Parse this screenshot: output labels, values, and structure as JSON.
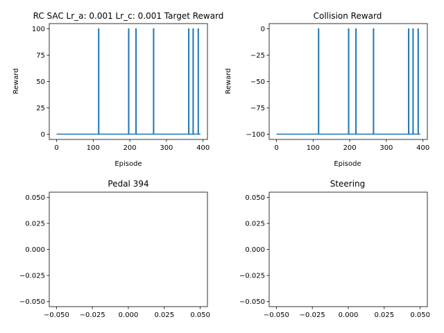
{
  "figure": {
    "background": "#ffffff",
    "line_color": "#1f77b4"
  },
  "chart_data": [
    {
      "type": "line",
      "title": "RC SAC Lr_a: 0.001 Lr_c: 0.001 Target Reward",
      "xlabel": "Episode",
      "ylabel": "Reward",
      "xlim": [
        -20,
        412
      ],
      "ylim": [
        -5,
        105
      ],
      "xticks": [
        0,
        100,
        200,
        300,
        400
      ],
      "yticks": [
        0,
        25,
        50,
        75,
        100
      ],
      "xtick_labels": [
        "0",
        "100",
        "200",
        "300",
        "400"
      ],
      "ytick_labels": [
        "0",
        "25",
        "50",
        "75",
        "100"
      ],
      "series": [
        {
          "color": "#1f77b4",
          "baseline": 0,
          "x_range": [
            0,
            393
          ],
          "spikes": [
            {
              "x": 115,
              "y": 100
            },
            {
              "x": 197,
              "y": 100
            },
            {
              "x": 217,
              "y": 100
            },
            {
              "x": 265,
              "y": 100
            },
            {
              "x": 361,
              "y": 100
            },
            {
              "x": 373,
              "y": 100
            },
            {
              "x": 387,
              "y": 100
            }
          ]
        }
      ]
    },
    {
      "type": "line",
      "title": "Collision Reward",
      "xlabel": "Episode",
      "ylabel": "Reward",
      "xlim": [
        -20,
        412
      ],
      "ylim": [
        -105,
        5
      ],
      "xticks": [
        0,
        100,
        200,
        300,
        400
      ],
      "yticks": [
        -100,
        -75,
        -50,
        -25,
        0
      ],
      "xtick_labels": [
        "0",
        "100",
        "200",
        "300",
        "400"
      ],
      "ytick_labels": [
        "−100",
        "−75",
        "−50",
        "−25",
        "0"
      ],
      "series": [
        {
          "color": "#1f77b4",
          "baseline": -100,
          "x_range": [
            0,
            393
          ],
          "spikes": [
            {
              "x": 115,
              "y": 0
            },
            {
              "x": 197,
              "y": 0
            },
            {
              "x": 217,
              "y": 0
            },
            {
              "x": 265,
              "y": 0
            },
            {
              "x": 361,
              "y": 0
            },
            {
              "x": 373,
              "y": 0
            },
            {
              "x": 387,
              "y": 0
            }
          ]
        }
      ]
    },
    {
      "type": "line",
      "title": "Pedal 394",
      "xlabel": "",
      "ylabel": "",
      "xlim": [
        -0.055,
        0.055
      ],
      "ylim": [
        -0.055,
        0.055
      ],
      "xticks": [
        -0.05,
        -0.025,
        0,
        0.025,
        0.05
      ],
      "yticks": [
        -0.05,
        -0.025,
        0,
        0.025,
        0.05
      ],
      "xtick_labels": [
        "−0.050",
        "−0.025",
        "0.000",
        "0.025",
        "0.050"
      ],
      "ytick_labels": [
        "−0.050",
        "−0.025",
        "0.000",
        "0.025",
        "0.050"
      ],
      "series": []
    },
    {
      "type": "line",
      "title": "Steering",
      "xlabel": "",
      "ylabel": "",
      "xlim": [
        -0.055,
        0.055
      ],
      "ylim": [
        -0.055,
        0.055
      ],
      "xticks": [
        -0.05,
        -0.025,
        0,
        0.025,
        0.05
      ],
      "yticks": [
        -0.05,
        -0.025,
        0,
        0.025,
        0.05
      ],
      "xtick_labels": [
        "−0.050",
        "−0.025",
        "0.000",
        "0.025",
        "0.050"
      ],
      "ytick_labels": [
        "−0.050",
        "−0.025",
        "0.000",
        "0.025",
        "0.050"
      ],
      "series": []
    }
  ]
}
